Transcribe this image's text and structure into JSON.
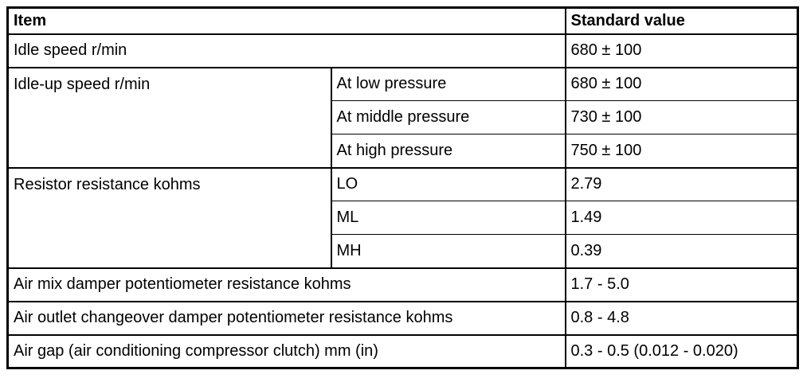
{
  "table": {
    "colors": {
      "border": "#000000",
      "background": "#ffffff",
      "text": "#000000"
    },
    "headers": {
      "item": "Item",
      "standard_value": "Standard value"
    },
    "rows": [
      {
        "item": "Idle speed r/min",
        "value": "680 ± 100"
      },
      {
        "item": "Idle-up speed r/min",
        "subs": [
          {
            "sub": "At low pressure",
            "value": "680 ± 100"
          },
          {
            "sub": "At middle pressure",
            "value": "730 ± 100"
          },
          {
            "sub": "At high pressure",
            "value": "750 ± 100"
          }
        ]
      },
      {
        "item": "Resistor resistance kohms",
        "subs": [
          {
            "sub": "LO",
            "value": "2.79"
          },
          {
            "sub": "ML",
            "value": "1.49"
          },
          {
            "sub": "MH",
            "value": "0.39"
          }
        ]
      },
      {
        "item": "Air mix damper potentiometer resistance kohms",
        "value": "1.7 - 5.0"
      },
      {
        "item": "Air outlet changeover damper potentiometer resistance kohms",
        "value": "0.8 - 4.8"
      },
      {
        "item": "Air gap (air conditioning compressor clutch) mm (in)",
        "value": "0.3 - 0.5 (0.012 - 0.020)"
      }
    ]
  }
}
